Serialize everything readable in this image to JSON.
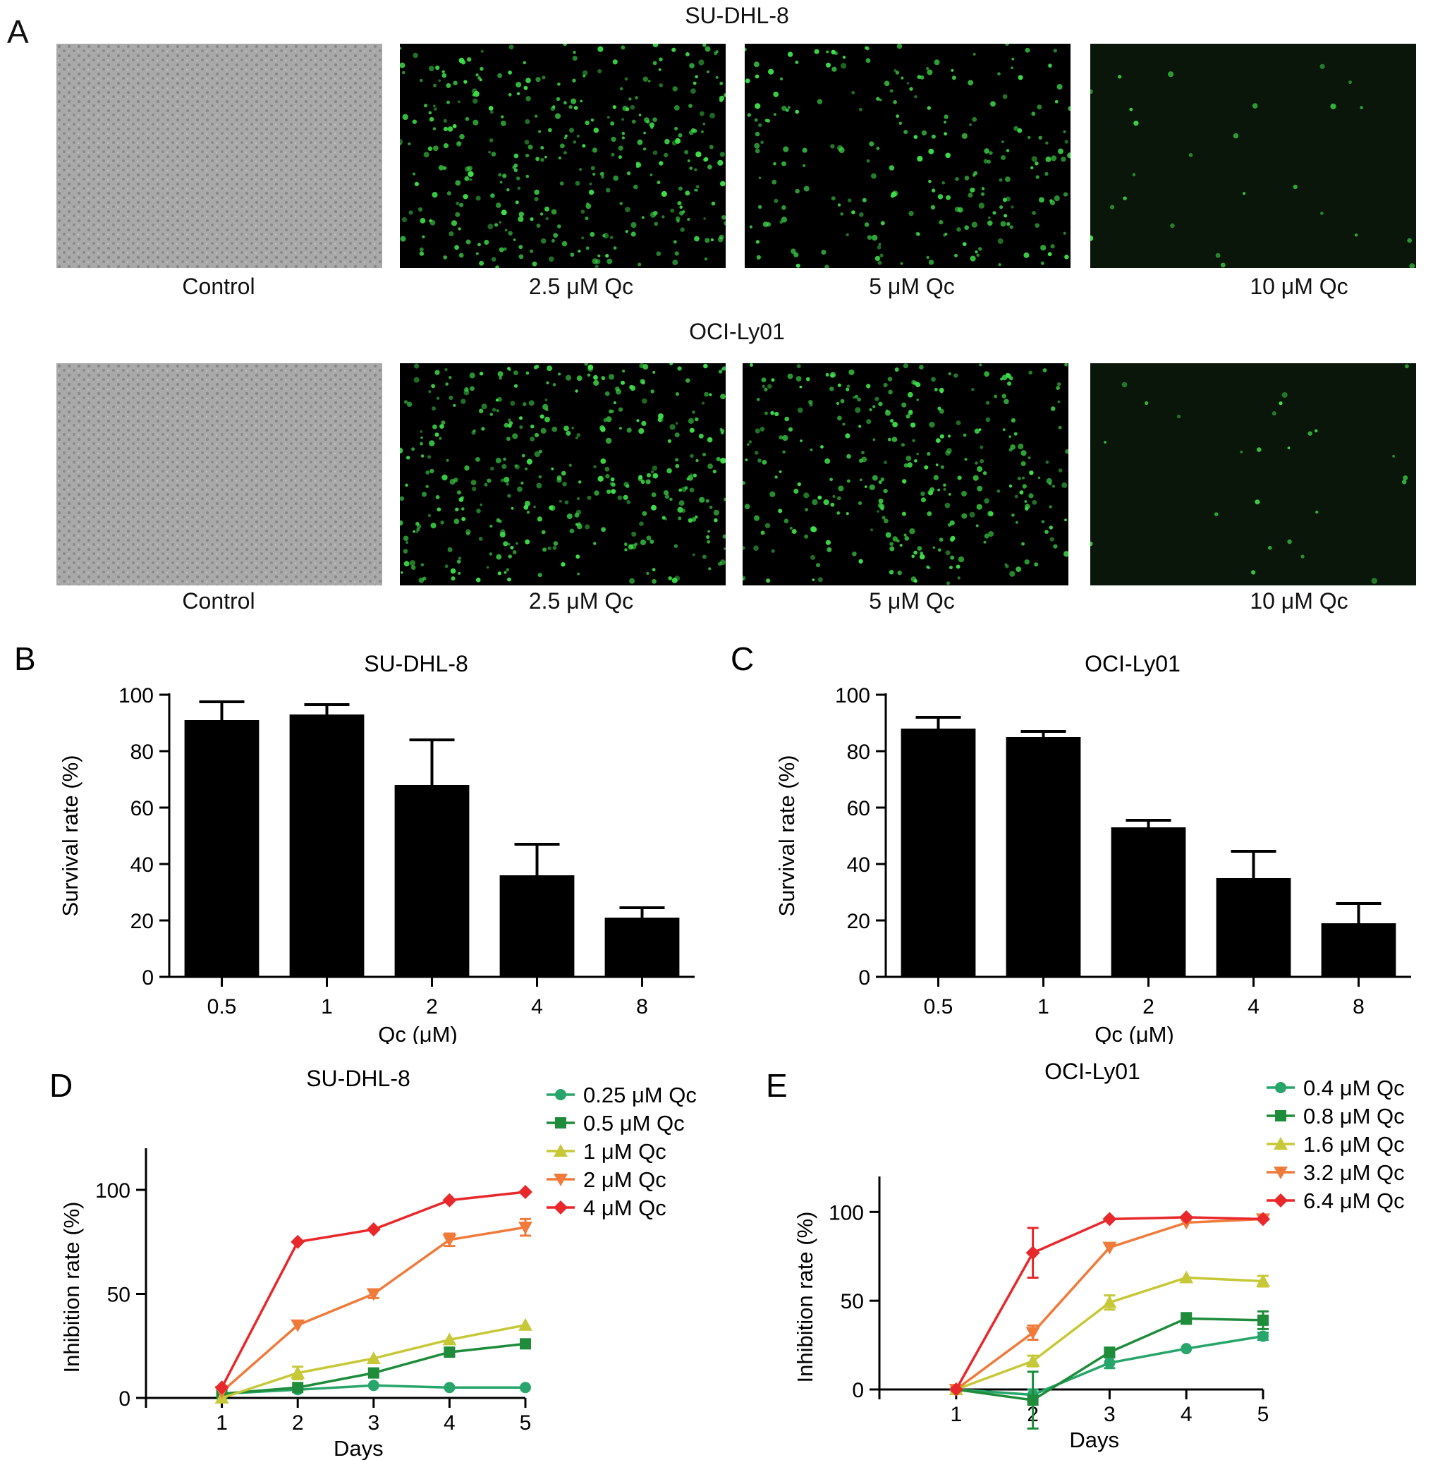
{
  "panel_a": {
    "letter": "A",
    "rows": [
      {
        "title": "SU-DHL-8",
        "captions": [
          "Control",
          "2.5 μM Qc",
          "5 μM Qc",
          "10 μM Qc"
        ],
        "image_kinds": [
          "brightfield",
          "fluorescence",
          "fluorescence",
          "fluorescence"
        ],
        "fluorescence_levels": [
          0,
          0.85,
          0.55,
          0.06
        ]
      },
      {
        "title": "OCI-Ly01",
        "captions": [
          "Control",
          "2.5 μM Qc",
          "5 μM Qc",
          "10 μM Qc"
        ],
        "image_kinds": [
          "brightfield",
          "fluorescence",
          "fluorescence",
          "fluorescence"
        ],
        "fluorescence_levels": [
          0,
          0.9,
          0.75,
          0.06
        ]
      }
    ]
  },
  "chart_data": [
    {
      "id": "B",
      "letter": "B",
      "type": "bar",
      "title": "SU-DHL-8",
      "xlabel": "Qc (μM)",
      "ylabel": "Survival rate (%)",
      "categories": [
        "0.5",
        "1",
        "2",
        "4",
        "8"
      ],
      "values": [
        91,
        93,
        68,
        36,
        21
      ],
      "errors": [
        6.5,
        3.5,
        16,
        11,
        3.5
      ],
      "ylim": [
        0,
        100
      ],
      "yticks": [
        "0",
        "20",
        "40",
        "60",
        "80",
        "100"
      ],
      "bar_color": "#000000"
    },
    {
      "id": "C",
      "letter": "C",
      "type": "bar",
      "title": "OCI-Ly01",
      "xlabel": "Qc (μM)",
      "ylabel": "Survival rate (%)",
      "categories": [
        "0.5",
        "1",
        "2",
        "4",
        "8"
      ],
      "values": [
        88,
        85,
        53,
        35,
        19
      ],
      "errors": [
        4,
        2,
        2.5,
        9.5,
        7
      ],
      "ylim": [
        0,
        100
      ],
      "yticks": [
        "0",
        "20",
        "40",
        "60",
        "80",
        "100"
      ],
      "bar_color": "#000000"
    },
    {
      "id": "D",
      "letter": "D",
      "type": "line",
      "title": "SU-DHL-8",
      "xlabel": "Days",
      "ylabel": "Inhibition rate (%)",
      "x": [
        1,
        2,
        3,
        4,
        5
      ],
      "xlim": [
        0,
        5
      ],
      "xticks": [
        "1",
        "2",
        "3",
        "4",
        "5"
      ],
      "ylim": [
        0,
        120
      ],
      "yticks": [
        "0",
        "50",
        "100"
      ],
      "legend_position": "top-right",
      "series": [
        {
          "name": "0.25 μM Qc",
          "color": "#27a56a",
          "marker": "circle",
          "values": [
            2,
            4,
            6,
            5,
            5
          ],
          "errors": [
            1,
            1,
            1,
            1,
            1
          ]
        },
        {
          "name": "0.5 μM Qc",
          "color": "#1e8c3a",
          "marker": "square",
          "values": [
            2,
            5,
            12,
            22,
            26
          ],
          "errors": [
            1,
            1,
            1,
            2,
            1
          ]
        },
        {
          "name": "1 μM Qc",
          "color": "#c7c837",
          "marker": "triangle-up",
          "values": [
            0,
            12,
            19,
            28,
            35
          ],
          "errors": [
            1,
            3,
            1,
            1,
            1
          ]
        },
        {
          "name": "2 μM Qc",
          "color": "#f07a3a",
          "marker": "triangle-down",
          "values": [
            3,
            35,
            50,
            76,
            82
          ],
          "errors": [
            1,
            1,
            2,
            3,
            4
          ]
        },
        {
          "name": "4 μM Qc",
          "color": "#e8282b",
          "marker": "diamond",
          "values": [
            5,
            75,
            81,
            95,
            99
          ],
          "errors": [
            1,
            1,
            1,
            1,
            1
          ]
        }
      ]
    },
    {
      "id": "E",
      "letter": "E",
      "type": "line",
      "title": "OCI-Ly01",
      "xlabel": "Days",
      "ylabel": "Inhibition rate (%)",
      "x": [
        1,
        2,
        3,
        4,
        5
      ],
      "xlim": [
        0,
        5
      ],
      "xticks": [
        "1",
        "2",
        "3",
        "4",
        "5"
      ],
      "ylim": [
        0,
        120
      ],
      "yticks": [
        "0",
        "50",
        "100"
      ],
      "legend_position": "top-right",
      "series": [
        {
          "name": "0.4 μM Qc",
          "color": "#27a56a",
          "marker": "circle",
          "values": [
            0,
            -3,
            15,
            23,
            30
          ],
          "errors": [
            1,
            3,
            3,
            1,
            2
          ]
        },
        {
          "name": "0.8 μM Qc",
          "color": "#1e8c3a",
          "marker": "square",
          "values": [
            0,
            -6,
            21,
            40,
            39
          ],
          "errors": [
            1,
            16,
            2,
            3,
            5
          ]
        },
        {
          "name": "1.6 μM Qc",
          "color": "#c7c837",
          "marker": "triangle-up",
          "values": [
            0,
            16,
            49,
            63,
            61
          ],
          "errors": [
            1,
            3,
            4,
            1,
            3
          ]
        },
        {
          "name": "3.2 μM Qc",
          "color": "#f07a3a",
          "marker": "triangle-down",
          "values": [
            0,
            32,
            80,
            94,
            96
          ],
          "errors": [
            1,
            4,
            1,
            1,
            1
          ]
        },
        {
          "name": "6.4 μM Qc",
          "color": "#e8282b",
          "marker": "diamond",
          "values": [
            0,
            77,
            96,
            97,
            96
          ],
          "errors": [
            1,
            14,
            1,
            1,
            1
          ]
        }
      ]
    }
  ]
}
